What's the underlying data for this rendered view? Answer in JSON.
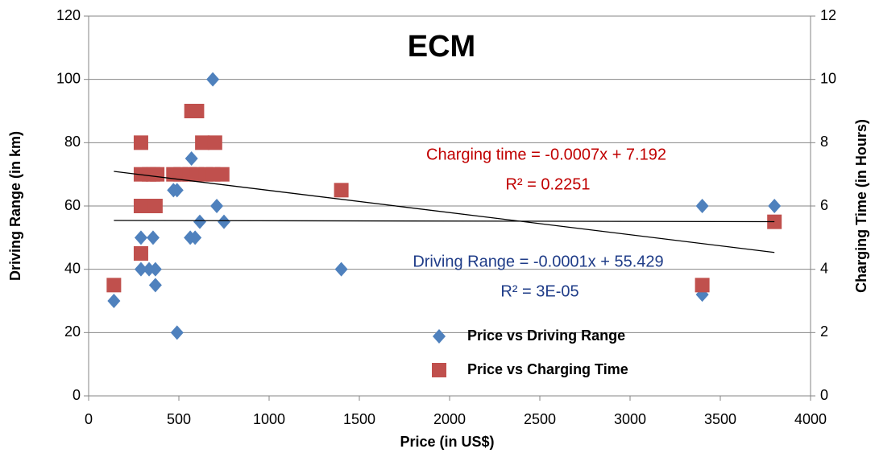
{
  "chart_data": {
    "type": "scatter",
    "title": "ECM",
    "xlabel": "Price (in US$)",
    "ylabel": "Driving Range (in km)",
    "y2label": "Charging Time (in Hours)",
    "xlim": [
      0,
      4000
    ],
    "xticks": [
      0,
      500,
      1000,
      1500,
      2000,
      2500,
      3000,
      3500,
      4000
    ],
    "ylim": [
      0,
      120
    ],
    "yticks": [
      0,
      20,
      40,
      60,
      80,
      100,
      120
    ],
    "y2lim": [
      0,
      12
    ],
    "y2ticks": [
      0,
      2,
      4,
      6,
      8,
      10,
      12
    ],
    "grid": true,
    "legend": "bottom",
    "series": [
      {
        "name": "Price vs Driving Range",
        "color": "#4f81bd",
        "marker": "diamond",
        "axis": "y",
        "x": [
          140,
          290,
          290,
          335,
          357,
          370,
          370,
          470,
          490,
          490,
          563,
          570,
          590,
          616,
          688,
          710,
          750,
          1400,
          3400,
          3400,
          3800
        ],
        "values": [
          30,
          50,
          40,
          40,
          50,
          35,
          40,
          65,
          65,
          20,
          50,
          75,
          50,
          55,
          100,
          60,
          55,
          40,
          60,
          32,
          60
        ],
        "trendline": {
          "slope": -0.0001,
          "intercept": 55.429
        }
      },
      {
        "name": "Price vs Charging Time",
        "color": "#c0504d",
        "marker": "square",
        "axis": "y2",
        "x": [
          140,
          290,
          290,
          290,
          290,
          335,
          357,
          380,
          340,
          370,
          470,
          510,
          560,
          600,
          650,
          690,
          740,
          570,
          600,
          630,
          700,
          1400,
          3400,
          3800
        ],
        "values": [
          3.5,
          8,
          7,
          6,
          4.5,
          7,
          7,
          7,
          6,
          6,
          7,
          7,
          7,
          7,
          7,
          7,
          7,
          9,
          9,
          8,
          8,
          6.5,
          3.5,
          5.5
        ],
        "trendline": {
          "slope": -0.0007,
          "intercept": 7.192
        }
      }
    ],
    "annotations": [
      {
        "text": "Charging time = -0.0007x + 7.192",
        "color": "#c00000"
      },
      {
        "text": "R² = 0.2251",
        "color": "#c00000"
      },
      {
        "text": "Driving Range = -0.0001x + 55.429",
        "color": "#1f3c88"
      },
      {
        "text": "R² = 3E-05",
        "color": "#1f3c88"
      }
    ]
  }
}
